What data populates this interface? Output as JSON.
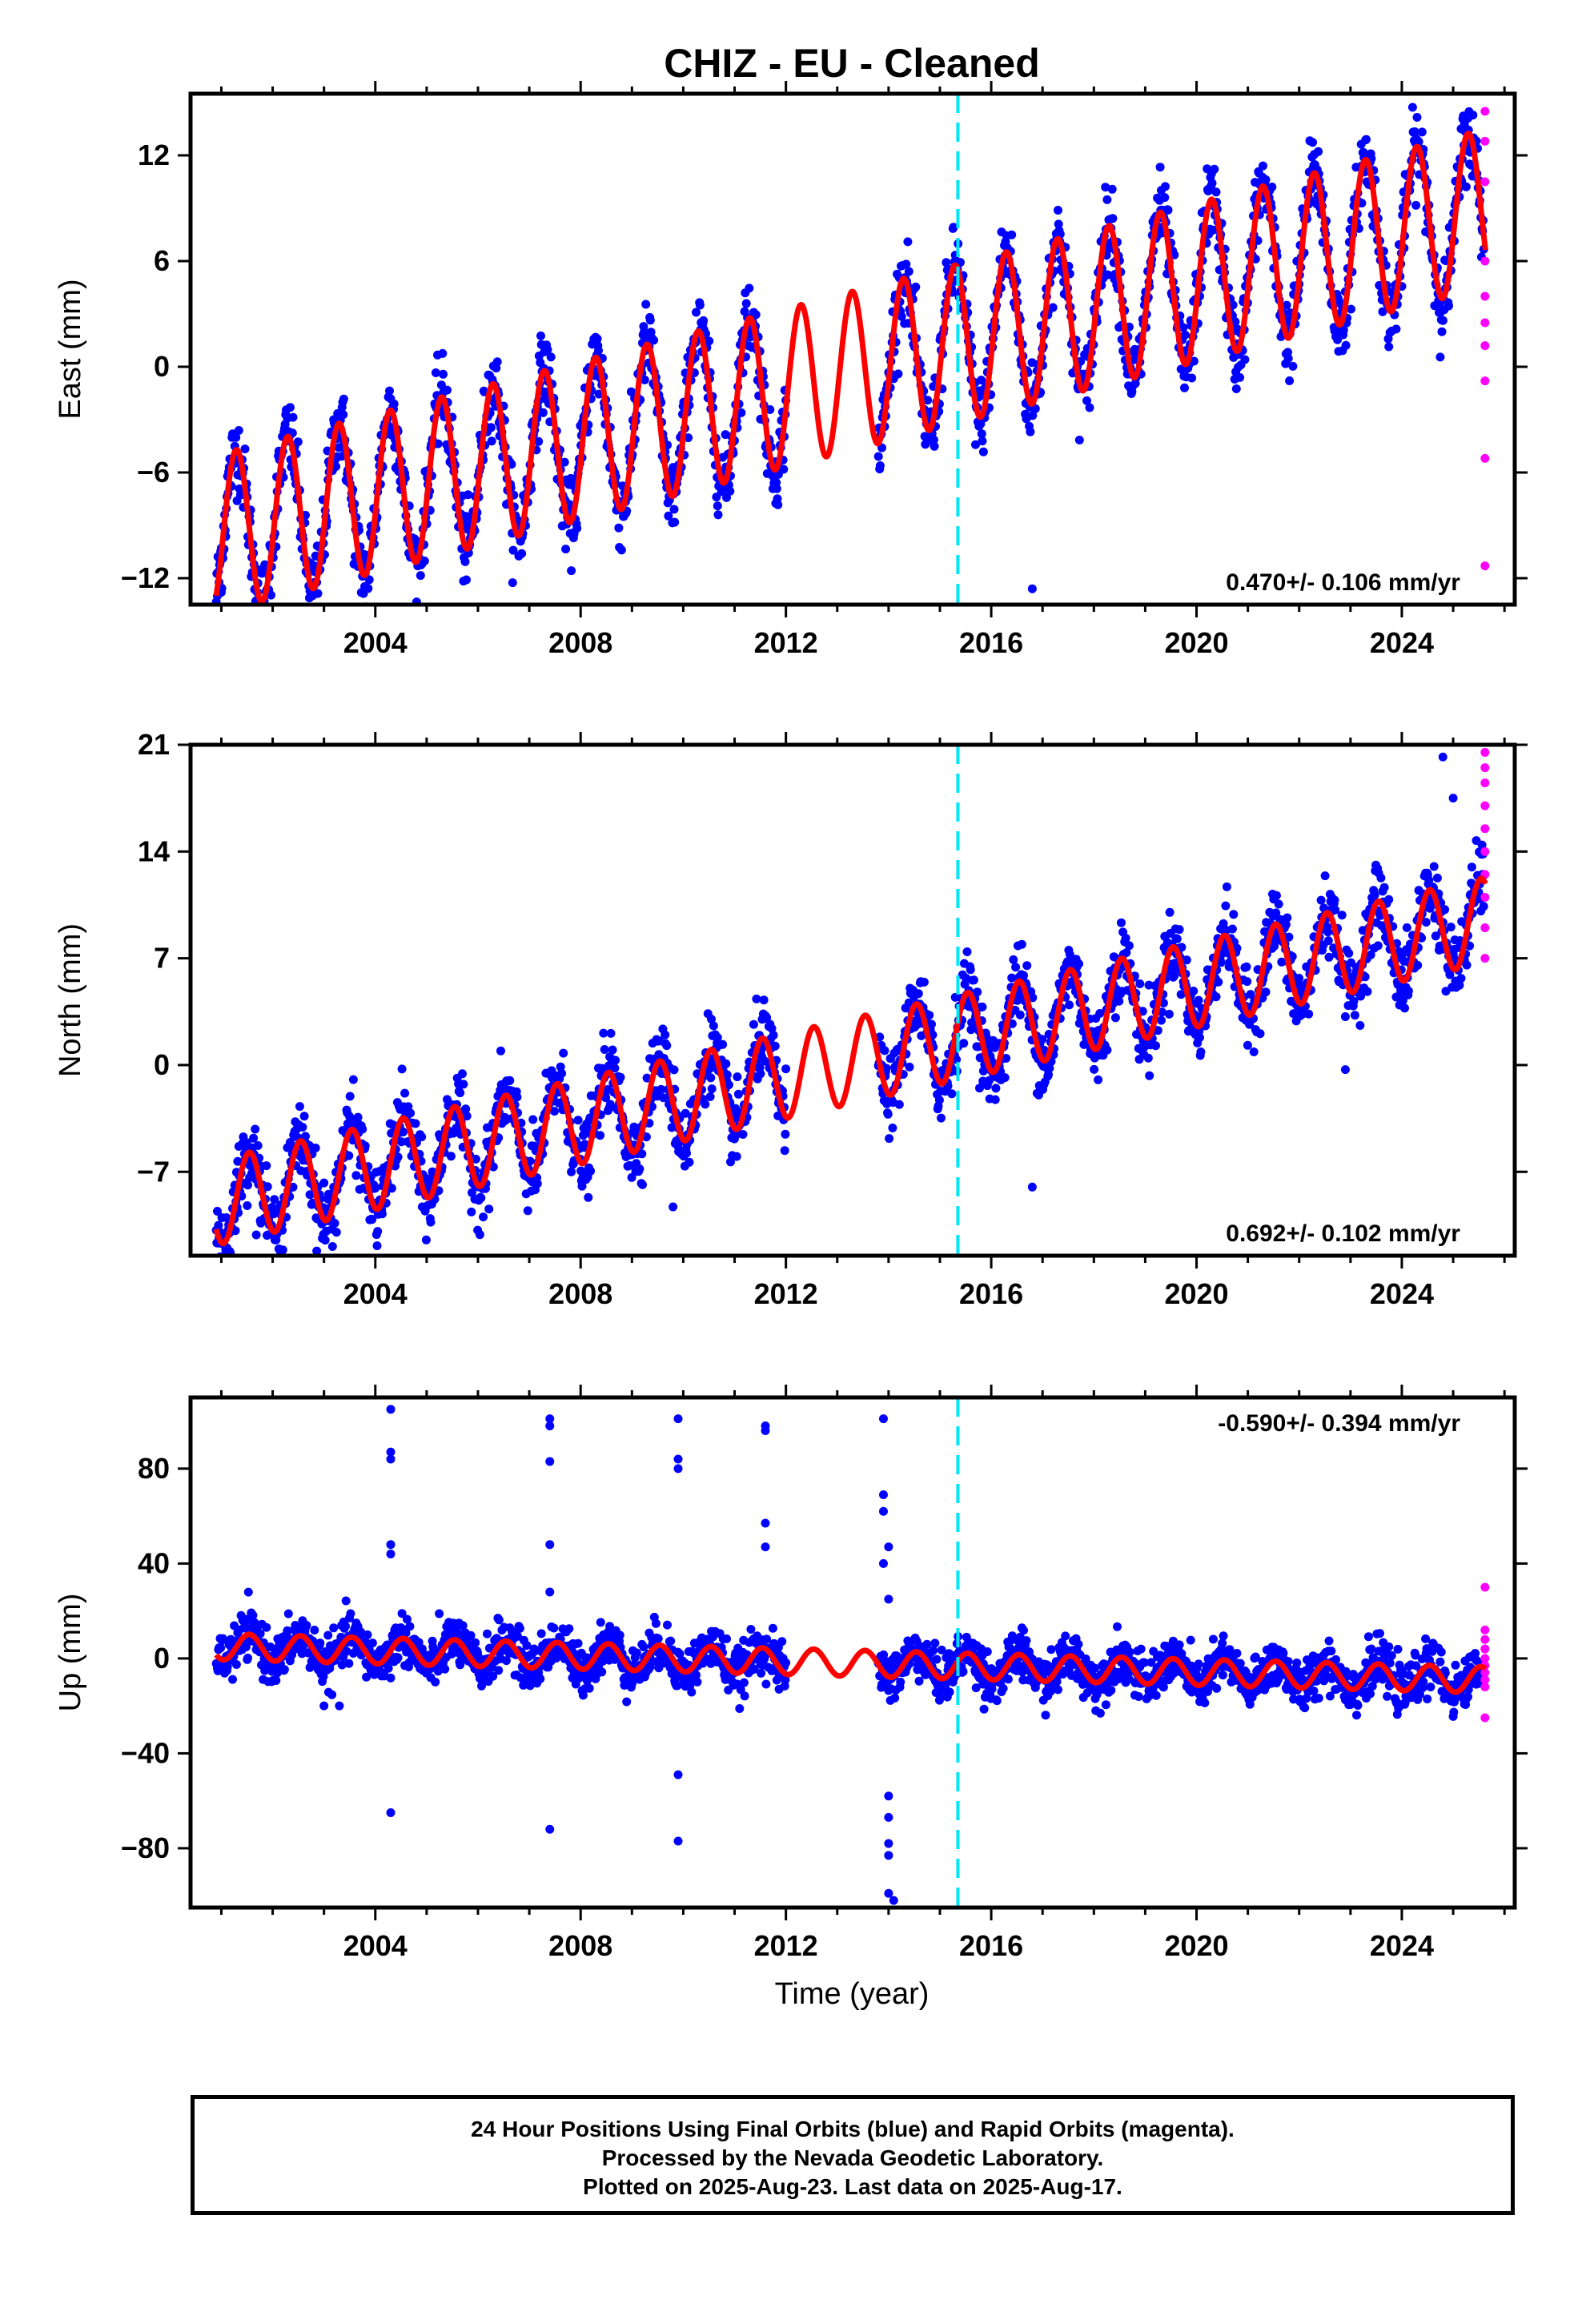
{
  "chart_data": {
    "title": "CHIZ  - EU - Cleaned",
    "type": "scatter",
    "xlabel": "Time (year)",
    "xlim": [
      2000.4,
      2026.2
    ],
    "x_ticks": [
      2004,
      2008,
      2012,
      2016,
      2020,
      2024
    ],
    "vertical_line_x": 2015.35,
    "colors": {
      "final_orbits": "#0000ff",
      "rapid_orbits": "#ff00ff",
      "model": "#ff0000",
      "marker_line": "#00e5ff"
    },
    "data_span": [
      2000.9,
      2025.63
    ],
    "gap": [
      2012.0,
      2013.8
    ],
    "panels": [
      {
        "ylabel": "East (mm)",
        "ylim": [
          -13.5,
          15.5
        ],
        "y_ticks": [
          -12,
          -6,
          0,
          6,
          12
        ],
        "rate_label": "0.470+/- 0.106 mm/yr",
        "rate_position": "bottom-right",
        "model": {
          "start_value": -9.5,
          "end_value": 9.0,
          "annual_amplitude": 4.5,
          "phase_peak_month": 4,
          "scatter_std": 1.1
        },
        "outliers_blue": [
          {
            "x": 2016.8,
            "y": -12.6
          },
          {
            "x": 2001.0,
            "y": -12.8
          }
        ],
        "rapid_points": [
          14.5,
          12.8,
          10.5,
          6.0,
          4.0,
          2.5,
          1.2,
          -0.8,
          -5.2,
          -11.3
        ]
      },
      {
        "ylabel": "North (mm)",
        "ylim": [
          -12.5,
          21
        ],
        "y_ticks": [
          -7,
          0,
          7,
          14,
          21
        ],
        "rate_label": "0.692+/- 0.102 mm/yr",
        "rate_position": "bottom-right",
        "model": {
          "start_value": -9.0,
          "end_value": 9.5,
          "annual_amplitude": 2.8,
          "phase_peak_month": 7,
          "scatter_std": 1.2
        },
        "outliers_blue": [
          {
            "x": 2016.8,
            "y": -8.0
          },
          {
            "x": 2022.9,
            "y": -0.3
          },
          {
            "x": 2024.8,
            "y": 20.2
          },
          {
            "x": 2025.0,
            "y": 17.5
          },
          {
            "x": 2009.8,
            "y": -9.3
          }
        ],
        "rapid_points": [
          20.5,
          19.5,
          18.5,
          17.0,
          15.5,
          14.0,
          12.5,
          11.0,
          9.0,
          7.0
        ]
      },
      {
        "ylabel": "Up (mm)",
        "ylim": [
          -105,
          110
        ],
        "y_ticks": [
          -80,
          -40,
          0,
          40,
          80
        ],
        "rate_label": "-0.590+/- 0.394 mm/yr",
        "rate_position": "top-right",
        "model": {
          "start_value": 5.0,
          "end_value": -9.0,
          "annual_amplitude": 5.5,
          "phase_peak_month": 7,
          "scatter_std": 5.0
        },
        "outliers_blue": [
          {
            "x": 2004.3,
            "y": 105
          },
          {
            "x": 2004.3,
            "y": 87
          },
          {
            "x": 2004.3,
            "y": 84
          },
          {
            "x": 2004.3,
            "y": 48
          },
          {
            "x": 2004.3,
            "y": 44
          },
          {
            "x": 2004.3,
            "y": -65
          },
          {
            "x": 2007.4,
            "y": 101
          },
          {
            "x": 2007.4,
            "y": 98
          },
          {
            "x": 2007.4,
            "y": 83
          },
          {
            "x": 2007.4,
            "y": 48
          },
          {
            "x": 2007.4,
            "y": 28
          },
          {
            "x": 2007.4,
            "y": -72
          },
          {
            "x": 2009.9,
            "y": 101
          },
          {
            "x": 2009.9,
            "y": 84
          },
          {
            "x": 2009.9,
            "y": 80
          },
          {
            "x": 2009.9,
            "y": -49
          },
          {
            "x": 2009.9,
            "y": -77
          },
          {
            "x": 2011.6,
            "y": 98
          },
          {
            "x": 2011.6,
            "y": 96
          },
          {
            "x": 2011.6,
            "y": 57
          },
          {
            "x": 2011.6,
            "y": 47
          },
          {
            "x": 2013.9,
            "y": 101
          },
          {
            "x": 2013.9,
            "y": 69
          },
          {
            "x": 2013.9,
            "y": 62
          },
          {
            "x": 2013.9,
            "y": 40
          },
          {
            "x": 2014.0,
            "y": 47
          },
          {
            "x": 2014.0,
            "y": 25
          },
          {
            "x": 2014.0,
            "y": -58
          },
          {
            "x": 2014.0,
            "y": -67
          },
          {
            "x": 2014.0,
            "y": -78
          },
          {
            "x": 2014.0,
            "y": -83
          },
          {
            "x": 2014.0,
            "y": -99
          },
          {
            "x": 2014.1,
            "y": -102
          },
          {
            "x": 2003.0,
            "y": -20
          },
          {
            "x": 2003.3,
            "y": -20
          }
        ],
        "rapid_points": [
          30,
          12,
          8,
          4,
          0,
          -3,
          -6,
          -9,
          -12,
          -25
        ]
      }
    ],
    "footer": {
      "line1": "24 Hour Positions Using Final Orbits (blue) and Rapid Orbits (magenta).",
      "line2": "Processed by the Nevada Geodetic Laboratory.",
      "line3": "Plotted on 2025-Aug-23. Last data on 2025-Aug-17."
    }
  }
}
